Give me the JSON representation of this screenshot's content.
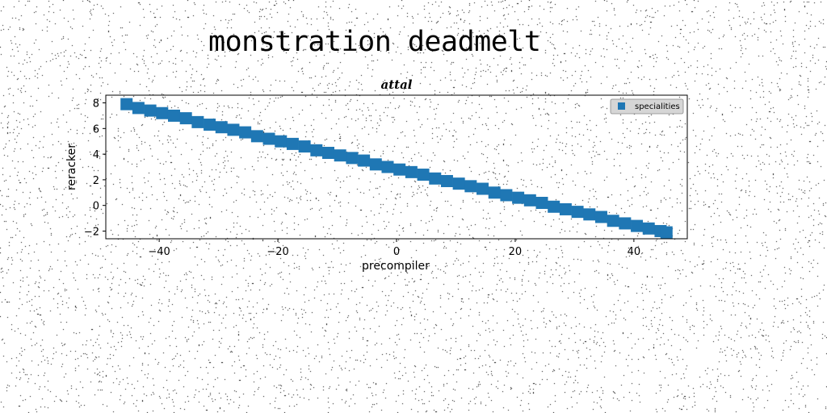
{
  "figure": {
    "suptitle": "monstration deadmelt"
  },
  "chart_data": {
    "type": "scatter",
    "title": "attal",
    "xlabel": "precompiler",
    "ylabel": "reracker",
    "xlim": [
      -49,
      49
    ],
    "ylim": [
      -2.6,
      8.6
    ],
    "xticks": [
      -40,
      -20,
      0,
      20,
      40
    ],
    "yticks": [
      -2,
      0,
      2,
      4,
      6,
      8
    ],
    "grid": false,
    "legend_position": "top-right",
    "marker": "square",
    "series": [
      {
        "name": "specialities",
        "color": "#1f77b4",
        "x": [
          -45.5,
          -43.5,
          -41.5,
          -39.5,
          -37.5,
          -35.5,
          -33.5,
          -31.5,
          -29.5,
          -27.5,
          -25.5,
          -23.5,
          -21.5,
          -19.5,
          -17.5,
          -15.5,
          -13.5,
          -11.5,
          -9.5,
          -7.5,
          -5.5,
          -3.5,
          -1.5,
          0.5,
          2.5,
          4.5,
          6.5,
          8.5,
          10.5,
          12.5,
          14.5,
          16.5,
          18.5,
          20.5,
          22.5,
          24.5,
          26.5,
          28.5,
          30.5,
          32.5,
          34.5,
          36.5,
          38.5,
          40.5,
          42.5,
          44.5,
          45.5
        ],
        "y": [
          7.9,
          7.6,
          7.4,
          7.2,
          7.0,
          6.8,
          6.5,
          6.3,
          6.1,
          5.9,
          5.7,
          5.4,
          5.2,
          5.0,
          4.8,
          4.6,
          4.3,
          4.1,
          3.9,
          3.7,
          3.5,
          3.2,
          3.0,
          2.8,
          2.6,
          2.4,
          2.1,
          1.9,
          1.7,
          1.5,
          1.3,
          1.0,
          0.8,
          0.6,
          0.4,
          0.2,
          -0.1,
          -0.3,
          -0.5,
          -0.7,
          -0.9,
          -1.2,
          -1.4,
          -1.6,
          -1.8,
          -2.0,
          -2.1
        ]
      }
    ]
  }
}
